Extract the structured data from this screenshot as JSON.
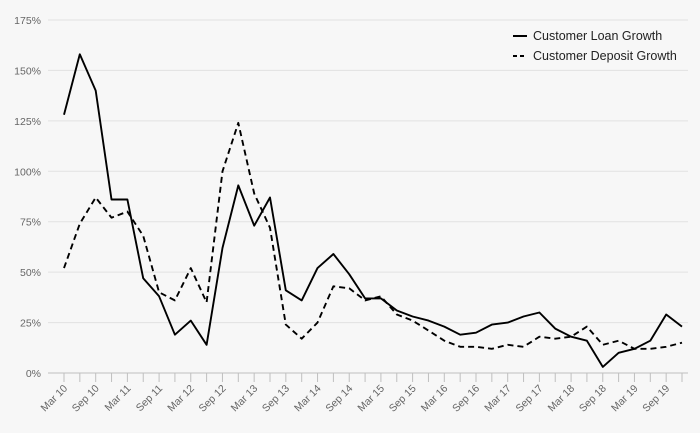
{
  "chart_data": {
    "type": "line",
    "title": "",
    "xlabel": "",
    "ylabel": "",
    "ylim": [
      0,
      175
    ],
    "yticks": [
      0,
      25,
      50,
      75,
      100,
      125,
      150,
      175
    ],
    "ytick_labels": [
      "0%",
      "25%",
      "50%",
      "75%",
      "100%",
      "125%",
      "150%",
      "175%"
    ],
    "grid": "horizontal",
    "legend_position": "top-right",
    "x": [
      "Mar 10",
      "Jun 10",
      "Sep 10",
      "Dec 10",
      "Mar 11",
      "Jun 11",
      "Sep 11",
      "Dec 11",
      "Mar 12",
      "Jun 12",
      "Sep 12",
      "Dec 12",
      "Mar 13",
      "Jun 13",
      "Sep 13",
      "Dec 13",
      "Mar 14",
      "Jun 14",
      "Sep 14",
      "Dec 14",
      "Mar 15",
      "Jun 15",
      "Sep 15",
      "Dec 15",
      "Mar 16",
      "Jun 16",
      "Sep 16",
      "Dec 16",
      "Mar 17",
      "Jun 17",
      "Sep 17",
      "Dec 17",
      "Mar 18",
      "Jun 18",
      "Sep 18",
      "Dec 18",
      "Mar 19",
      "Jun 19",
      "Sep 19",
      "Dec 19"
    ],
    "x_tick_labels": [
      "Mar 10",
      "Sep 10",
      "Mar 11",
      "Sep 11",
      "Mar 12",
      "Sep 12",
      "Mar 13",
      "Sep 13",
      "Mar 14",
      "Sep 14",
      "Mar 15",
      "Sep 15",
      "Mar 16",
      "Sep 16",
      "Mar 17",
      "Sep 17",
      "Mar 18",
      "Sep 18",
      "Mar 19",
      "Sep 19"
    ],
    "series": [
      {
        "name": "Customer Loan Growth",
        "style": "solid",
        "color": "#000000",
        "values": [
          128,
          158,
          140,
          86,
          86,
          47,
          38,
          19,
          26,
          14,
          62,
          93,
          73,
          87,
          41,
          36,
          52,
          59,
          49,
          37,
          37,
          31,
          28,
          26,
          23,
          19,
          20,
          24,
          25,
          28,
          30,
          22,
          18,
          16,
          3,
          10,
          12,
          16,
          29,
          23
        ]
      },
      {
        "name": "Customer Deposit Growth",
        "style": "dashed",
        "color": "#000000",
        "values": [
          52,
          74,
          87,
          77,
          80,
          68,
          40,
          36,
          52,
          35,
          100,
          124,
          89,
          72,
          24,
          17,
          25,
          43,
          42,
          36,
          38,
          29,
          26,
          21,
          16,
          13,
          13,
          12,
          14,
          13,
          18,
          17,
          18,
          23,
          14,
          16,
          12,
          12,
          13,
          15
        ]
      }
    ]
  }
}
